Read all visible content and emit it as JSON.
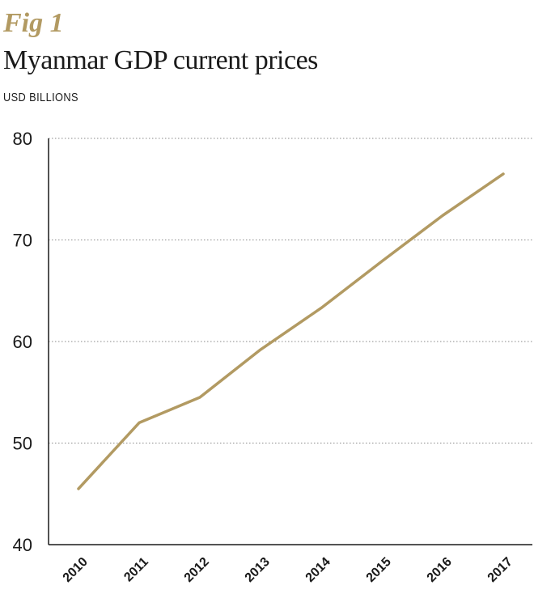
{
  "fig_label": "Fig 1",
  "chart_data": {
    "type": "line",
    "title": "Myanmar GDP current prices",
    "subtitle": "USD BILLIONS",
    "xlabel": "",
    "ylabel": "",
    "categories": [
      "2010",
      "2011",
      "2012",
      "2013",
      "2014",
      "2015",
      "2016",
      "2017"
    ],
    "series": [
      {
        "values": [
          45.5,
          52.0,
          54.5,
          59.2,
          63.3,
          67.9,
          72.4,
          76.5
        ]
      }
    ],
    "ylim": [
      40,
      80
    ],
    "yticks": [
      "40",
      "50",
      "60",
      "70",
      "80"
    ],
    "grid": true,
    "colors": {
      "line": "#b29a62",
      "axis": "#1a1a1a",
      "grid": "#8a8a8a"
    }
  }
}
